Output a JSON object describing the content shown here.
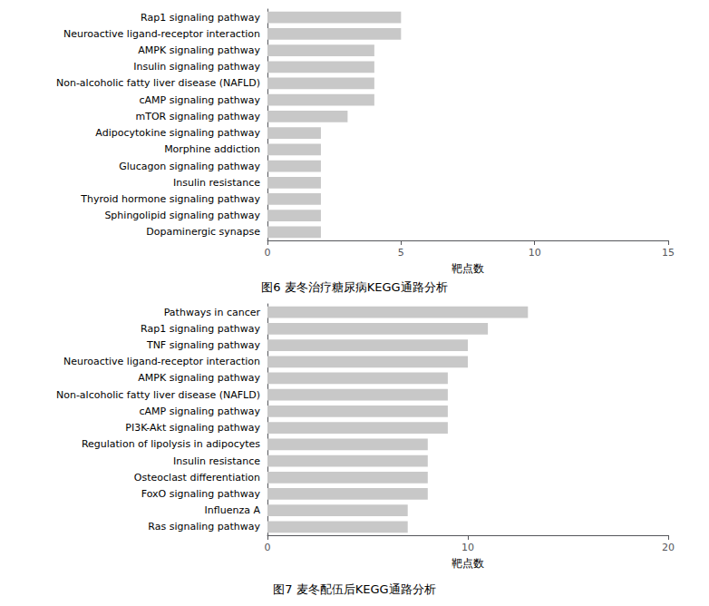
{
  "chart_data": [
    {
      "type": "bar",
      "orientation": "horizontal",
      "title": "图6 麦冬治疗糖尿病KEGG通路分析",
      "xlabel": "靶点数",
      "categories": [
        "Dopaminergic synapse",
        "Sphingolipid signaling pathway",
        "Thyroid hormone signaling pathway",
        "Insulin resistance",
        "Glucagon signaling pathway",
        "Morphine addiction",
        "Adipocytokine signaling pathway",
        "mTOR signaling pathway",
        "cAMP signaling pathway",
        "Non-alcoholic fatty liver disease (NAFLD)",
        "Insulin signaling pathway",
        "AMPK signaling pathway",
        "Neuroactive ligand-receptor interaction",
        "Rap1 signaling pathway"
      ],
      "values": [
        2,
        2,
        2,
        2,
        2,
        2,
        2,
        3,
        4,
        4,
        4,
        4,
        5,
        5
      ],
      "color": "#c8c8c8",
      "xlim": [
        0,
        15
      ],
      "xticks": [
        0,
        5,
        10,
        15
      ],
      "grid": false
    },
    {
      "type": "bar",
      "orientation": "horizontal",
      "title": "图7 麦冬配伍后KEGG通路分析",
      "xlabel": "靶点数",
      "categories": [
        "Ras signaling pathway",
        "Influenza A",
        "FoxO signaling pathway",
        "Osteoclast differentiation",
        "Insulin resistance",
        "Regulation of lipolysis in adipocytes",
        "PI3K-Akt signaling pathway",
        "cAMP signaling pathway",
        "Non-alcoholic fatty liver disease (NAFLD)",
        "AMPK signaling pathway",
        "Neuroactive ligand-receptor interaction",
        "TNF signaling pathway",
        "Rap1 signaling pathway",
        "Pathways in cancer"
      ],
      "values": [
        7,
        7,
        8,
        8,
        8,
        8,
        9,
        9,
        9,
        9,
        10,
        10,
        11,
        13
      ],
      "color": "#c8c8c8",
      "xlim": [
        0,
        20
      ],
      "xticks": [
        0,
        10,
        20
      ],
      "grid": false
    }
  ]
}
